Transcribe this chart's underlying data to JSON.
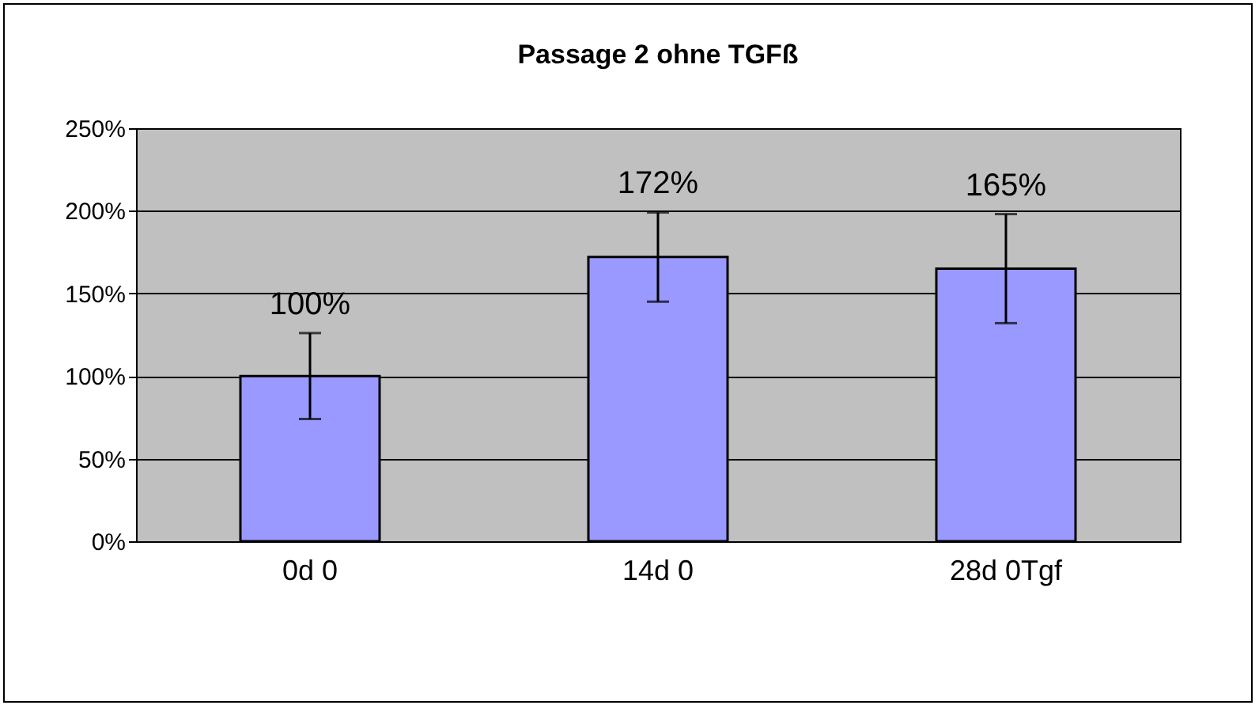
{
  "chart_data": {
    "type": "bar",
    "title": "Passage 2 ohne TGFß",
    "categories": [
      "0d 0",
      "14d 0",
      "28d 0Tgf"
    ],
    "values": [
      100,
      172,
      165
    ],
    "errors": [
      26,
      27,
      33
    ],
    "color": "#9999ff",
    "value_labels": [
      "100%",
      "172%",
      "165%"
    ],
    "ylim": [
      0,
      250
    ],
    "yticks": [
      {
        "value": 0,
        "label": "0%"
      },
      {
        "value": 50,
        "label": "50%"
      },
      {
        "value": 100,
        "label": "100%"
      },
      {
        "value": 150,
        "label": "150%"
      },
      {
        "value": 200,
        "label": "200%"
      },
      {
        "value": 250,
        "label": "250%"
      }
    ],
    "grid": "y"
  }
}
